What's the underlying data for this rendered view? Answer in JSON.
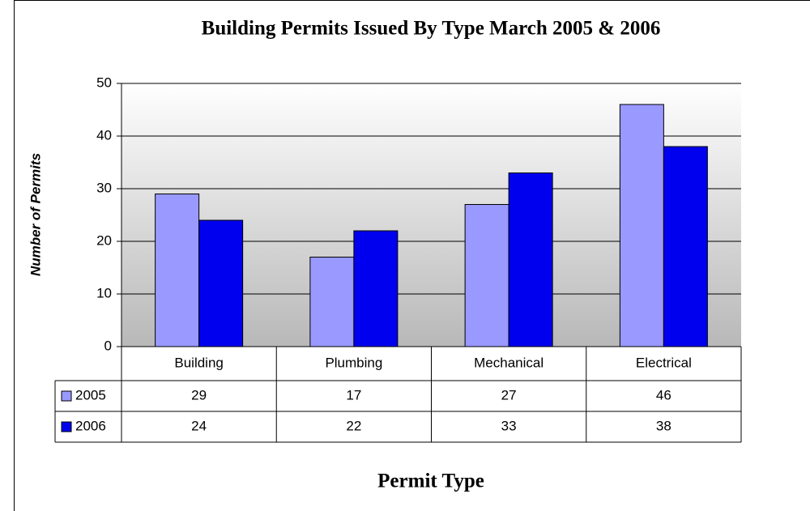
{
  "chart_data": {
    "type": "bar",
    "title": "Building Permits Issued By Type March 2005 & 2006",
    "x_label": "Permit Type",
    "y_label": "Number of Permits",
    "categories": [
      "Building",
      "Plumbing",
      "Mechanical",
      "Electrical"
    ],
    "series": [
      {
        "name": "2005",
        "color": "#9999ff",
        "values": [
          29,
          17,
          27,
          46
        ]
      },
      {
        "name": "2006",
        "color": "#0000ee",
        "values": [
          24,
          22,
          33,
          38
        ]
      }
    ],
    "ylim": [
      0,
      50
    ],
    "yticks": [
      0,
      10,
      20,
      30,
      40,
      50
    ],
    "grid": true,
    "data_table": true
  }
}
